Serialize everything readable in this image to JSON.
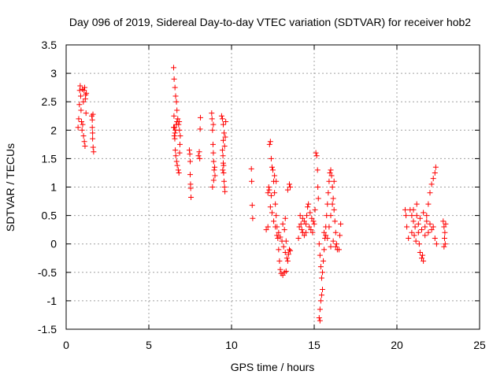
{
  "chart_data": {
    "type": "scatter",
    "title": "Day 096 of 2019, Sidereal Day-to-day VTEC variation (SDTVAR) for receiver hob2",
    "xlabel": "GPS time / hours",
    "ylabel": "SDTVAR / TECUs",
    "xlim": [
      0,
      25
    ],
    "ylim": [
      -1.5,
      3.5
    ],
    "xticks": [
      0,
      5,
      10,
      15,
      20,
      25
    ],
    "xtick_labels": [
      "0",
      "5",
      "10",
      "15",
      "20",
      "25"
    ],
    "yticks": [
      -1.5,
      -1,
      -0.5,
      0,
      0.5,
      1,
      1.5,
      2,
      2.5,
      3,
      3.5
    ],
    "ytick_labels": [
      "-1.5",
      "-1",
      "-0.5",
      "0",
      "0.5",
      "1",
      "1.5",
      "2",
      "2.5",
      "3",
      "3.5"
    ],
    "grid": true,
    "marker": "+",
    "color": "#ff0000",
    "series": [
      {
        "name": "SDTVAR",
        "points": [
          [
            0.72,
            2.05
          ],
          [
            0.76,
            2.2
          ],
          [
            0.8,
            2.45
          ],
          [
            0.82,
            2.7
          ],
          [
            0.85,
            2.78
          ],
          [
            0.88,
            2.6
          ],
          [
            0.9,
            2.35
          ],
          [
            0.93,
            2.15
          ],
          [
            0.96,
            2.0
          ],
          [
            1.0,
            2.1
          ],
          [
            1.04,
            2.5
          ],
          [
            1.08,
            2.7
          ],
          [
            1.12,
            2.75
          ],
          [
            1.16,
            2.55
          ],
          [
            1.2,
            2.3
          ],
          [
            1.22,
            2.65
          ],
          [
            1.05,
            1.9
          ],
          [
            1.1,
            1.8
          ],
          [
            1.14,
            1.72
          ],
          [
            0.98,
            2.72
          ],
          [
            1.18,
            2.62
          ],
          [
            1.55,
            2.25
          ],
          [
            1.58,
            2.05
          ],
          [
            1.6,
            1.85
          ],
          [
            1.63,
            1.7
          ],
          [
            1.66,
            1.62
          ],
          [
            1.6,
            1.95
          ],
          [
            1.58,
            2.18
          ],
          [
            1.62,
            2.28
          ],
          [
            6.5,
            3.1
          ],
          [
            6.53,
            2.9
          ],
          [
            6.58,
            2.75
          ],
          [
            6.62,
            2.6
          ],
          [
            6.67,
            2.5
          ],
          [
            6.7,
            2.35
          ],
          [
            6.75,
            2.2
          ],
          [
            6.8,
            2.1
          ],
          [
            6.85,
            2.0
          ],
          [
            6.9,
            1.9
          ],
          [
            6.52,
            2.25
          ],
          [
            6.55,
            2.05
          ],
          [
            6.57,
            1.85
          ],
          [
            6.6,
            1.65
          ],
          [
            6.63,
            1.55
          ],
          [
            6.68,
            1.45
          ],
          [
            6.72,
            1.38
          ],
          [
            6.78,
            1.3
          ],
          [
            6.82,
            1.25
          ],
          [
            6.7,
            2.15
          ],
          [
            6.66,
            2.1
          ],
          [
            6.62,
            2.0
          ],
          [
            6.58,
            1.95
          ],
          [
            6.54,
            1.9
          ],
          [
            6.5,
            2.05
          ],
          [
            6.88,
            1.75
          ],
          [
            6.86,
            1.6
          ],
          [
            6.84,
            2.15
          ],
          [
            7.45,
            1.65
          ],
          [
            7.48,
            1.58
          ],
          [
            7.5,
            1.45
          ],
          [
            7.52,
            1.05
          ],
          [
            7.53,
            0.98
          ],
          [
            7.55,
            0.82
          ],
          [
            7.5,
            1.22
          ],
          [
            8.0,
            1.55
          ],
          [
            8.05,
            1.62
          ],
          [
            8.1,
            2.02
          ],
          [
            8.12,
            2.22
          ],
          [
            8.08,
            1.5
          ],
          [
            8.8,
            2.3
          ],
          [
            8.82,
            2.2
          ],
          [
            8.85,
            2.0
          ],
          [
            8.88,
            1.75
          ],
          [
            8.9,
            1.6
          ],
          [
            8.92,
            1.45
          ],
          [
            8.95,
            1.3
          ],
          [
            9.0,
            1.2
          ],
          [
            8.85,
            1.0
          ],
          [
            8.92,
            1.12
          ],
          [
            8.98,
            1.35
          ],
          [
            8.9,
            2.1
          ],
          [
            9.4,
            2.25
          ],
          [
            9.45,
            2.2
          ],
          [
            9.5,
            2.1
          ],
          [
            9.55,
            1.95
          ],
          [
            9.5,
            1.82
          ],
          [
            9.45,
            1.65
          ],
          [
            9.48,
            1.55
          ],
          [
            9.5,
            1.42
          ],
          [
            9.52,
            1.25
          ],
          [
            9.55,
            1.1
          ],
          [
            9.58,
            1.0
          ],
          [
            9.6,
            0.92
          ],
          [
            9.65,
            2.15
          ],
          [
            9.62,
            1.88
          ],
          [
            9.58,
            1.72
          ],
          [
            9.52,
            1.38
          ],
          [
            9.47,
            1.3
          ],
          [
            11.2,
            1.32
          ],
          [
            11.22,
            1.1
          ],
          [
            11.25,
            0.68
          ],
          [
            11.28,
            0.45
          ],
          [
            12.1,
            0.25
          ],
          [
            12.2,
            0.3
          ],
          [
            12.25,
            1.0
          ],
          [
            12.3,
            1.75
          ],
          [
            12.35,
            1.8
          ],
          [
            12.4,
            1.5
          ],
          [
            12.5,
            1.3
          ],
          [
            12.55,
            1.1
          ],
          [
            12.6,
            0.9
          ],
          [
            12.65,
            0.7
          ],
          [
            12.7,
            0.5
          ],
          [
            12.75,
            0.3
          ],
          [
            12.8,
            0.1
          ],
          [
            12.85,
            -0.1
          ],
          [
            12.9,
            -0.3
          ],
          [
            12.95,
            -0.45
          ],
          [
            13.0,
            -0.52
          ],
          [
            13.1,
            -0.55
          ],
          [
            13.2,
            -0.5
          ],
          [
            13.3,
            -0.48
          ],
          [
            13.4,
            -0.3
          ],
          [
            13.5,
            -0.1
          ],
          [
            13.3,
            0.05
          ],
          [
            13.2,
            0.25
          ],
          [
            13.1,
            0.35
          ],
          [
            13.25,
            0.45
          ],
          [
            13.4,
            0.95
          ],
          [
            13.5,
            1.05
          ],
          [
            13.55,
            1.0
          ],
          [
            12.45,
            1.35
          ],
          [
            12.6,
            1.2
          ],
          [
            12.7,
            1.1
          ],
          [
            12.2,
            0.9
          ],
          [
            12.28,
            0.95
          ],
          [
            12.4,
            0.85
          ],
          [
            12.35,
            0.65
          ],
          [
            12.45,
            0.55
          ],
          [
            12.55,
            0.4
          ],
          [
            12.65,
            0.3
          ],
          [
            12.75,
            0.15
          ],
          [
            12.85,
            0.2
          ],
          [
            12.95,
            0.12
          ],
          [
            13.05,
            0.05
          ],
          [
            13.15,
            -0.05
          ],
          [
            13.25,
            -0.15
          ],
          [
            13.35,
            -0.25
          ],
          [
            13.45,
            -0.18
          ],
          [
            13.55,
            -0.12
          ],
          [
            14.05,
            0.1
          ],
          [
            14.1,
            0.3
          ],
          [
            14.15,
            0.5
          ],
          [
            14.2,
            0.35
          ],
          [
            14.25,
            0.25
          ],
          [
            14.3,
            0.2
          ],
          [
            14.4,
            0.15
          ],
          [
            14.5,
            0.2
          ],
          [
            14.55,
            0.5
          ],
          [
            14.6,
            0.65
          ],
          [
            14.7,
            0.3
          ],
          [
            14.8,
            0.25
          ],
          [
            14.9,
            0.2
          ],
          [
            15.0,
            0.35
          ],
          [
            15.05,
            0.6
          ],
          [
            15.1,
            1.6
          ],
          [
            15.15,
            1.55
          ],
          [
            15.2,
            1.3
          ],
          [
            15.22,
            1.0
          ],
          [
            15.25,
            0.8
          ],
          [
            14.65,
            0.7
          ],
          [
            14.75,
            0.55
          ],
          [
            14.85,
            0.45
          ],
          [
            14.95,
            0.4
          ],
          [
            14.3,
            0.45
          ],
          [
            14.4,
            0.4
          ],
          [
            14.5,
            0.35
          ],
          [
            15.3,
            0.0
          ],
          [
            15.35,
            -0.2
          ],
          [
            15.4,
            -0.4
          ],
          [
            15.45,
            -0.6
          ],
          [
            15.5,
            -0.8
          ],
          [
            15.4,
            -1.0
          ],
          [
            15.35,
            -1.15
          ],
          [
            15.3,
            -1.3
          ],
          [
            15.35,
            -1.35
          ],
          [
            15.45,
            -0.9
          ],
          [
            15.5,
            -0.5
          ],
          [
            15.55,
            -0.3
          ],
          [
            15.6,
            -0.1
          ],
          [
            15.65,
            0.1
          ],
          [
            15.7,
            0.3
          ],
          [
            15.75,
            0.5
          ],
          [
            15.8,
            0.7
          ],
          [
            15.85,
            0.9
          ],
          [
            15.9,
            1.1
          ],
          [
            15.95,
            1.25
          ],
          [
            16.0,
            1.3
          ],
          [
            16.05,
            1.2
          ],
          [
            16.1,
            1.0
          ],
          [
            16.15,
            0.8
          ],
          [
            16.2,
            0.6
          ],
          [
            16.25,
            0.4
          ],
          [
            16.3,
            0.2
          ],
          [
            16.35,
            0.0
          ],
          [
            16.4,
            -0.1
          ],
          [
            16.5,
            -0.1
          ],
          [
            16.55,
            0.15
          ],
          [
            16.6,
            0.35
          ],
          [
            15.6,
            0.2
          ],
          [
            15.7,
            0.15
          ],
          [
            15.8,
            0.1
          ],
          [
            15.9,
            0.3
          ],
          [
            16.0,
            0.5
          ],
          [
            16.1,
            0.7
          ],
          [
            16.2,
            1.1
          ],
          [
            16.0,
            -0.05
          ],
          [
            16.15,
            0.05
          ],
          [
            16.3,
            -0.05
          ],
          [
            20.5,
            0.6
          ],
          [
            20.55,
            0.5
          ],
          [
            20.6,
            0.3
          ],
          [
            20.7,
            0.1
          ],
          [
            20.8,
            0.6
          ],
          [
            20.9,
            0.5
          ],
          [
            21.0,
            0.4
          ],
          [
            21.1,
            0.3
          ],
          [
            21.2,
            0.5
          ],
          [
            21.3,
            0.2
          ],
          [
            21.35,
            0.0
          ],
          [
            21.4,
            -0.15
          ],
          [
            21.5,
            -0.25
          ],
          [
            21.6,
            -0.3
          ],
          [
            21.55,
            -0.2
          ],
          [
            21.7,
            0.3
          ],
          [
            21.8,
            0.5
          ],
          [
            21.9,
            0.7
          ],
          [
            22.0,
            0.9
          ],
          [
            22.1,
            1.05
          ],
          [
            22.2,
            1.15
          ],
          [
            22.3,
            1.25
          ],
          [
            22.35,
            1.35
          ],
          [
            21.0,
            0.6
          ],
          [
            21.2,
            0.7
          ],
          [
            21.4,
            0.45
          ],
          [
            21.6,
            0.55
          ],
          [
            21.8,
            0.4
          ],
          [
            22.0,
            0.35
          ],
          [
            22.2,
            0.3
          ],
          [
            22.3,
            0.1
          ],
          [
            22.4,
            0.0
          ],
          [
            21.3,
            0.35
          ],
          [
            21.5,
            0.25
          ],
          [
            21.7,
            0.15
          ],
          [
            21.9,
            0.2
          ],
          [
            22.1,
            0.25
          ],
          [
            20.9,
            0.2
          ],
          [
            21.05,
            0.15
          ],
          [
            21.15,
            0.05
          ],
          [
            22.8,
            0.4
          ],
          [
            22.85,
            0.3
          ],
          [
            22.9,
            0.2
          ],
          [
            22.88,
            0.1
          ],
          [
            22.92,
            0.0
          ],
          [
            22.85,
            -0.05
          ],
          [
            22.95,
            0.35
          ]
        ]
      }
    ]
  }
}
